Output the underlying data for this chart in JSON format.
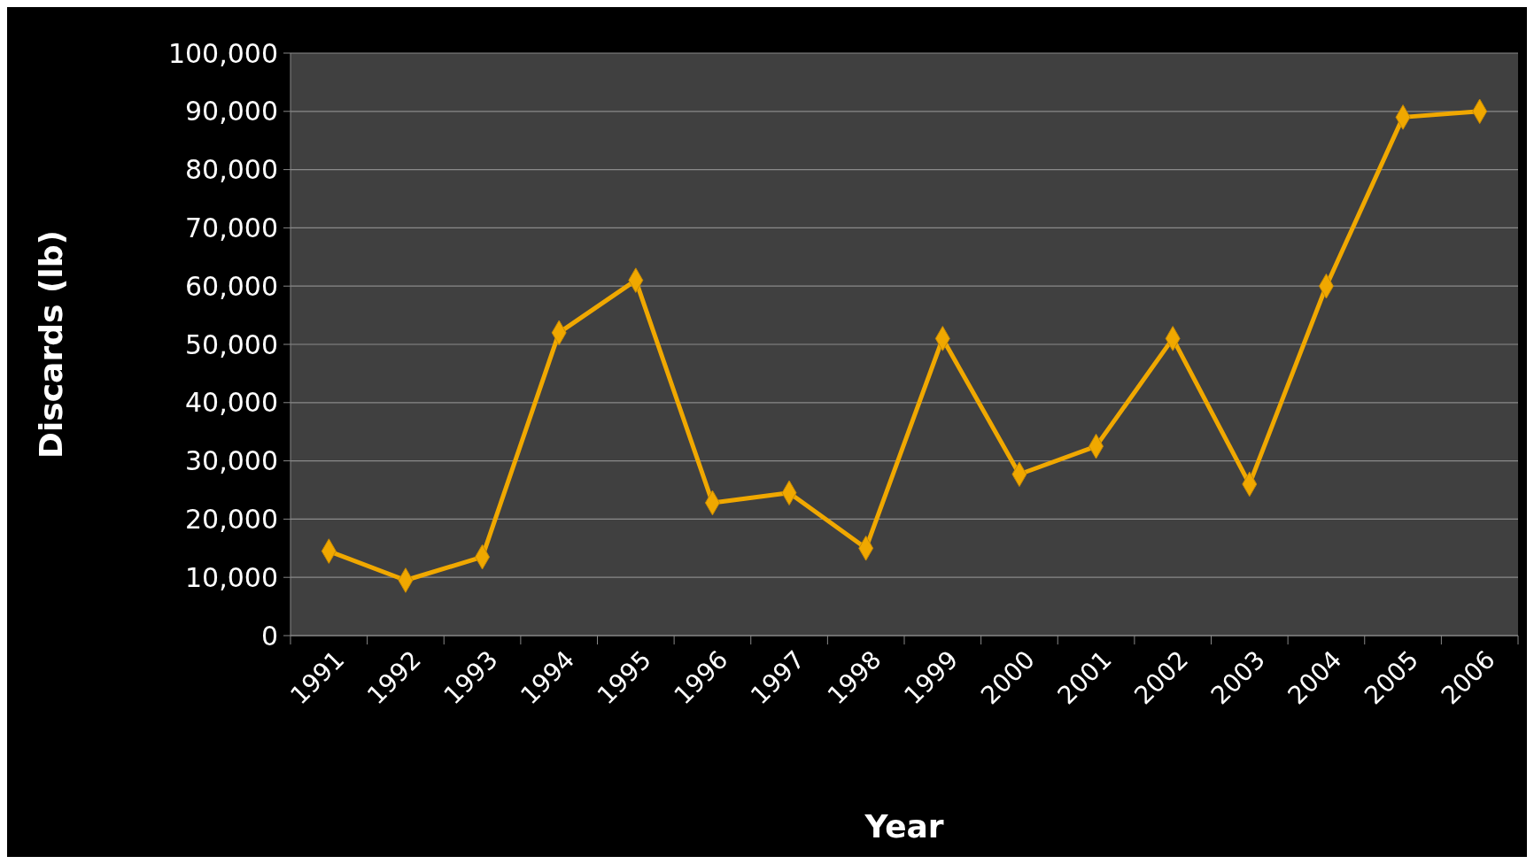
{
  "chart_data": {
    "type": "line",
    "xlabel": "Year",
    "ylabel": "Discards (lb)",
    "categories": [
      "1991",
      "1992",
      "1993",
      "1994",
      "1995",
      "1996",
      "1997",
      "1998",
      "1999",
      "2000",
      "2001",
      "2002",
      "2003",
      "2004",
      "2005",
      "2006"
    ],
    "series": [
      {
        "color": "#f0a800",
        "values": [
          14500,
          9500,
          13500,
          52000,
          61000,
          22800,
          24500,
          15000,
          51000,
          27700,
          32500,
          51000,
          26000,
          60000,
          89000,
          90000
        ]
      }
    ],
    "ylim": [
      0,
      100000
    ],
    "yticks": [
      {
        "value": 0,
        "label": "0"
      },
      {
        "value": 10000,
        "label": "10,000"
      },
      {
        "value": 20000,
        "label": "20,000"
      },
      {
        "value": 30000,
        "label": "30,000"
      },
      {
        "value": 40000,
        "label": "40,000"
      },
      {
        "value": 50000,
        "label": "50,000"
      },
      {
        "value": 60000,
        "label": "60,000"
      },
      {
        "value": 70000,
        "label": "70,000"
      },
      {
        "value": 80000,
        "label": "80,000"
      },
      {
        "value": 90000,
        "label": "90,000"
      },
      {
        "value": 100000,
        "label": "100,000"
      }
    ],
    "grid": "y",
    "marker": "diamond",
    "line_style": "solid"
  }
}
